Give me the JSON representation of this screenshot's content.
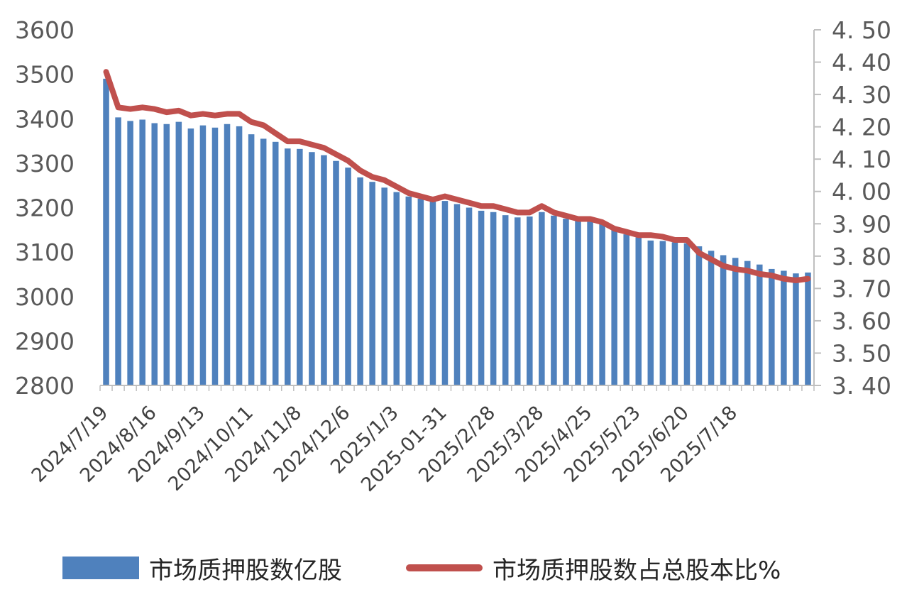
{
  "chart_data": {
    "type": "bar",
    "combo": "bar + line (secondary axis)",
    "left_axis": {
      "ylim": [
        2800,
        3600
      ],
      "ticks": [
        "2800",
        "2900",
        "3000",
        "3100",
        "3200",
        "3300",
        "3400",
        "3500",
        "3600"
      ]
    },
    "right_axis": {
      "ylim": [
        3.4,
        4.5
      ],
      "ticks": [
        "3. 40",
        "3. 50",
        "3. 60",
        "3. 70",
        "3. 80",
        "3. 90",
        "4. 00",
        "4. 10",
        "4. 20",
        "4. 30",
        "4. 40",
        "4. 50"
      ]
    },
    "x_tick_labels": [
      "2024/7/19",
      "2024/8/16",
      "2024/9/13",
      "2024/10/11",
      "2024/11/8",
      "2024/12/6",
      "2025/1/3",
      "2025-01-31",
      "2025/2/28",
      "2025/3/28",
      "2025/4/25",
      "2025/5/23",
      "2025/6/20",
      "2025/7/18"
    ],
    "series": [
      {
        "name": "市场质押股数亿股",
        "axis": "left",
        "color": "#4f81bd",
        "values": [
          3490,
          3403,
          3395,
          3398,
          3390,
          3388,
          3393,
          3378,
          3385,
          3380,
          3388,
          3383,
          3365,
          3355,
          3348,
          3333,
          3332,
          3325,
          3318,
          3305,
          3290,
          3268,
          3258,
          3245,
          3235,
          3225,
          3220,
          3218,
          3215,
          3208,
          3200,
          3193,
          3190,
          3183,
          3178,
          3180,
          3190,
          3182,
          3175,
          3170,
          3168,
          3165,
          3152,
          3140,
          3133,
          3126,
          3125,
          3122,
          3120,
          3113,
          3103,
          3093,
          3087,
          3080,
          3072,
          3062,
          3058,
          3052,
          3054
        ]
      },
      {
        "name": "市场质押股数占总股本比%",
        "axis": "right",
        "color": "#c0504d",
        "values": [
          4.37,
          4.26,
          4.255,
          4.26,
          4.255,
          4.245,
          4.25,
          4.235,
          4.24,
          4.235,
          4.24,
          4.24,
          4.215,
          4.205,
          4.18,
          4.155,
          4.155,
          4.145,
          4.135,
          4.115,
          4.095,
          4.065,
          4.045,
          4.035,
          4.015,
          3.995,
          3.985,
          3.975,
          3.985,
          3.975,
          3.965,
          3.955,
          3.955,
          3.945,
          3.935,
          3.935,
          3.955,
          3.935,
          3.925,
          3.915,
          3.915,
          3.905,
          3.885,
          3.875,
          3.865,
          3.865,
          3.86,
          3.85,
          3.85,
          3.81,
          3.79,
          3.77,
          3.76,
          3.755,
          3.745,
          3.74,
          3.73,
          3.725,
          3.73
        ]
      }
    ]
  },
  "legend": {
    "bar_label": "市场质押股数亿股",
    "line_label": "市场质押股数占总股本比%"
  }
}
